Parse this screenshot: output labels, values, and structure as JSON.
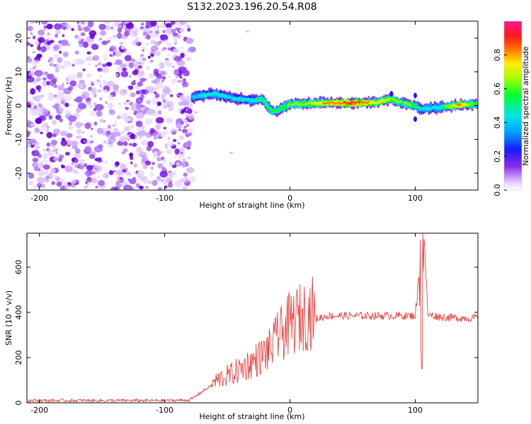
{
  "chart_data": [
    {
      "type": "heatmap",
      "title": "S132.2023.196.20.54.R08",
      "xlabel": "Height of straight line (km)",
      "ylabel": "Frequency (Hz)",
      "xlim": [
        -210,
        150
      ],
      "ylim": [
        -25,
        25
      ],
      "xticks": [
        -200,
        -100,
        0,
        100
      ],
      "yticks": [
        -20,
        -10,
        0,
        10,
        20
      ],
      "colorbar": {
        "label": "Normalized spectral amplitude",
        "range": [
          0,
          1
        ],
        "ticks": [
          0.0,
          0.2,
          0.4,
          0.6,
          0.8
        ],
        "colormap": "rainbow (purple-blue-cyan-green-yellow-red-magenta)"
      },
      "noise_region_x": [
        -210,
        -78
      ],
      "ridge": {
        "description": "Dominant frequency ridge versus height",
        "x": [
          -78,
          -70,
          -60,
          -50,
          -40,
          -30,
          -22,
          -18,
          -15,
          -10,
          -5,
          0,
          10,
          30,
          50,
          70,
          80,
          88,
          95,
          100,
          105,
          120,
          135,
          150
        ],
        "y": [
          2.5,
          3.0,
          3.5,
          2.5,
          2.0,
          1.5,
          2.0,
          0.0,
          -1.5,
          -1.5,
          -0.5,
          0.5,
          0.5,
          0.8,
          0.8,
          1.0,
          2.0,
          1.0,
          0.5,
          0.0,
          -1.0,
          -0.5,
          0.2,
          0.5
        ],
        "amplitude": [
          0.45,
          0.5,
          0.55,
          0.5,
          0.5,
          0.55,
          0.6,
          0.6,
          0.65,
          0.6,
          0.65,
          0.7,
          0.7,
          0.85,
          0.95,
          0.8,
          0.75,
          0.65,
          0.7,
          0.6,
          0.5,
          0.55,
          0.9,
          0.6
        ]
      },
      "colors": {
        "noise": "#7a1be8",
        "frame": "#000000"
      }
    },
    {
      "type": "line",
      "xlabel": "Height of straight line (km)",
      "ylabel": "SNR (10 * v/v)",
      "xlim": [
        -210,
        150
      ],
      "ylim": [
        0,
        750
      ],
      "xticks": [
        -200,
        -100,
        0,
        100
      ],
      "yticks": [
        0,
        200,
        400,
        600
      ],
      "series": [
        {
          "name": "SNR",
          "color": "#e8312e",
          "x": [
            -210,
            -150,
            -100,
            -80,
            -62,
            -55,
            -45,
            -35,
            -25,
            -15,
            -10,
            -5,
            0,
            10,
            20,
            30,
            40,
            60,
            80,
            100,
            103,
            105,
            107,
            110,
            120,
            135,
            150
          ],
          "y": [
            10,
            10,
            10,
            12,
            80,
            100,
            120,
            150,
            180,
            220,
            260,
            290,
            320,
            350,
            370,
            385,
            385,
            385,
            385,
            385,
            560,
            150,
            740,
            390,
            380,
            375,
            375
          ]
        }
      ]
    }
  ]
}
